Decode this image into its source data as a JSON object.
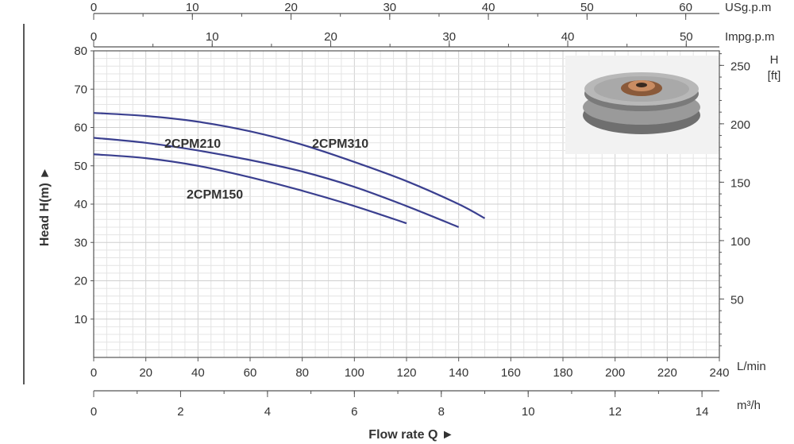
{
  "chart_data": {
    "type": "line",
    "xlabel": "Flow rate Q ►",
    "ylabel": "Head H(m) ►",
    "x_unit": "L/min",
    "xlim": [
      0,
      240
    ],
    "ylim": [
      0,
      80
    ],
    "grid": true,
    "x_ticks": [
      0,
      20,
      40,
      60,
      80,
      100,
      120,
      140,
      160,
      180,
      200,
      220,
      240
    ],
    "y_ticks": [
      10,
      20,
      30,
      40,
      50,
      60,
      70,
      80
    ],
    "secondary_axes": {
      "usgpm": {
        "label": "USg.p.m",
        "ticks": [
          0,
          10,
          20,
          30,
          40,
          50,
          60
        ]
      },
      "impgpm": {
        "label": "Impg.p.m",
        "ticks": [
          0,
          10,
          20,
          30,
          40,
          50
        ]
      },
      "m3h": {
        "label": "m³/h",
        "ticks": [
          0,
          2,
          4,
          6,
          8,
          10,
          12,
          14
        ]
      },
      "ft": {
        "label": "H\n[ft]",
        "ticks": [
          50,
          100,
          150,
          200,
          250
        ]
      }
    },
    "series": [
      {
        "name": "2CPM150",
        "color": "#3a3f8f",
        "x": [
          0,
          20,
          40,
          60,
          80,
          100,
          120
        ],
        "y": [
          53,
          52,
          50,
          47,
          43.5,
          39.5,
          35
        ]
      },
      {
        "name": "2CPM210",
        "color": "#3a3f8f",
        "x": [
          0,
          20,
          40,
          60,
          80,
          100,
          120,
          140
        ],
        "y": [
          57.3,
          56,
          54,
          51.5,
          48.5,
          44.5,
          39.5,
          34
        ]
      },
      {
        "name": "2CPM310",
        "color": "#3a3f8f",
        "x": [
          0,
          20,
          40,
          60,
          80,
          100,
          120,
          140,
          150
        ],
        "y": [
          63.8,
          63,
          61.5,
          59,
          55.5,
          51,
          46,
          40,
          36.3
        ]
      }
    ]
  },
  "product_image": {
    "name": "impeller-photo"
  }
}
